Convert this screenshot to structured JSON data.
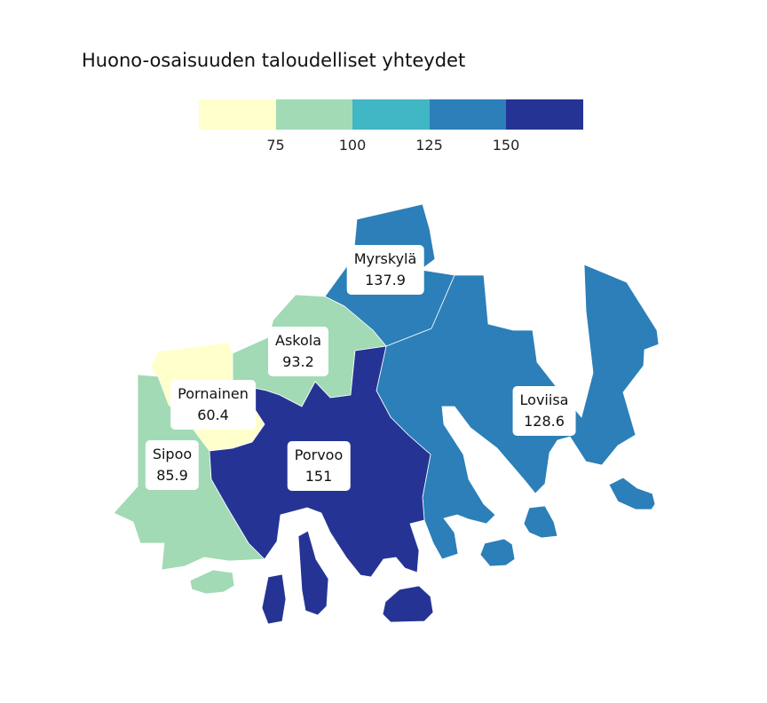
{
  "title": "Huono-osaisuuden taloudelliset yhteydet",
  "legend": {
    "colors": [
      "#ffffcc",
      "#a1dab4",
      "#41b6c4",
      "#2c7fb8",
      "#253494"
    ],
    "ticks": [
      "75",
      "100",
      "125",
      "150"
    ]
  },
  "regions": [
    {
      "name": "Myrskylä",
      "value": "137.9",
      "color": "#2c7fb8"
    },
    {
      "name": "Askola",
      "value": "93.2",
      "color": "#a1dab4"
    },
    {
      "name": "Pornainen",
      "value": "60.4",
      "color": "#ffffcc"
    },
    {
      "name": "Sipoo",
      "value": "85.9",
      "color": "#a1dab4"
    },
    {
      "name": "Porvoo",
      "value": "151",
      "color": "#253494"
    },
    {
      "name": "Loviisa",
      "value": "128.6",
      "color": "#2c7fb8"
    }
  ]
}
